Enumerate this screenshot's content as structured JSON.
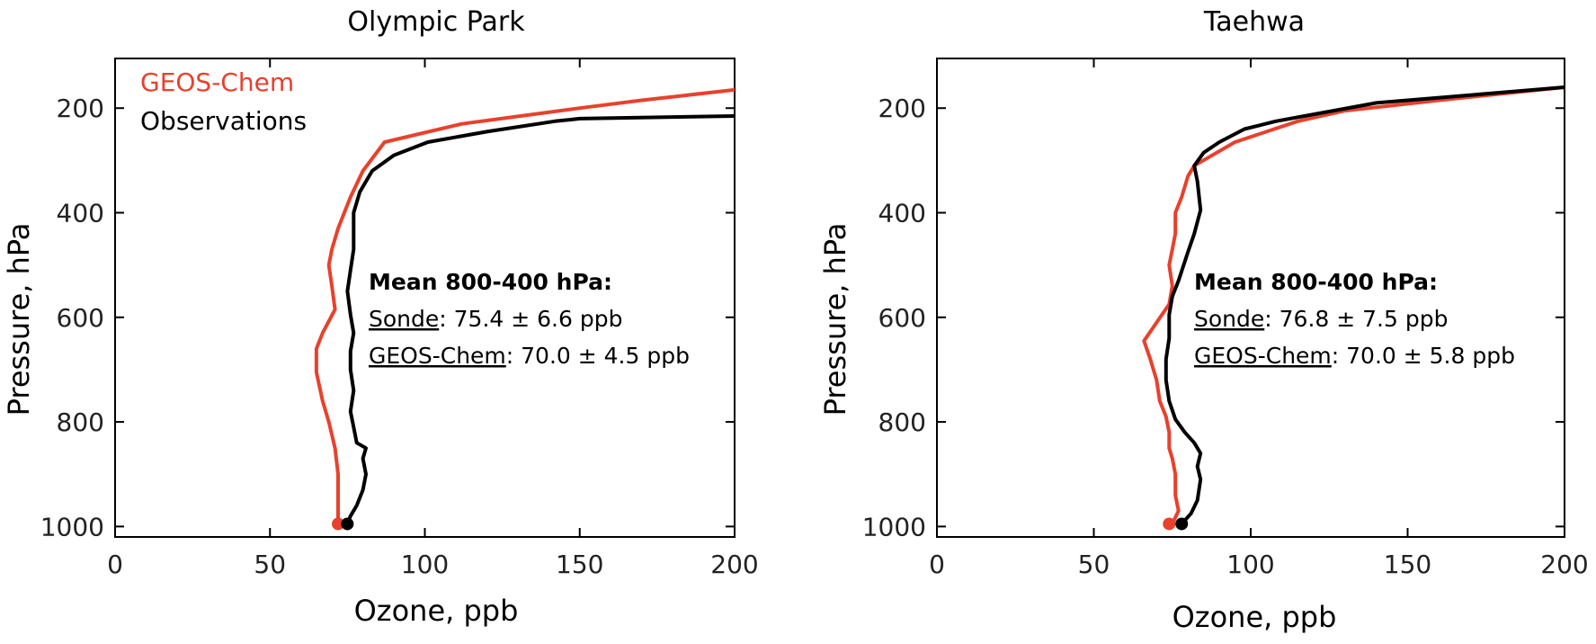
{
  "chart_data": [
    {
      "type": "line",
      "title": "Olympic Park",
      "xlabel": "Ozone, ppb",
      "ylabel": "Pressure, hPa",
      "xlim": [
        0,
        200
      ],
      "ylim": [
        1020,
        105
      ],
      "y_inverted": true,
      "xticks": [
        0,
        50,
        100,
        150,
        200
      ],
      "yticks": [
        200,
        400,
        600,
        800,
        1000
      ],
      "legend_position": "top-left",
      "series": [
        {
          "name": "GEOS-Chem",
          "color": "#e8412c",
          "points": [
            [
              200,
              165
            ],
            [
              170,
              185
            ],
            [
              150,
              200
            ],
            [
              112,
              230
            ],
            [
              87,
              265
            ],
            [
              80,
              320
            ],
            [
              76,
              370
            ],
            [
              72,
              430
            ],
            [
              70,
              470
            ],
            [
              69,
              500
            ],
            [
              70,
              540
            ],
            [
              71,
              585
            ],
            [
              67,
              630
            ],
            [
              65,
              660
            ],
            [
              65,
              705
            ],
            [
              67,
              760
            ],
            [
              69,
              800
            ],
            [
              71,
              850
            ],
            [
              72,
              900
            ],
            [
              72,
              960
            ],
            [
              72,
              995
            ]
          ],
          "surface_marker": [
            72,
            995
          ]
        },
        {
          "name": "Observations",
          "color": "#000000",
          "points": [
            [
              200,
              215
            ],
            [
              150,
              220
            ],
            [
              142,
              225
            ],
            [
              120,
              245
            ],
            [
              101,
              265
            ],
            [
              90,
              290
            ],
            [
              83,
              320
            ],
            [
              79,
              360
            ],
            [
              77,
              400
            ],
            [
              77,
              440
            ],
            [
              77,
              470
            ],
            [
              76,
              510
            ],
            [
              75,
              550
            ],
            [
              76,
              595
            ],
            [
              77,
              630
            ],
            [
              76,
              665
            ],
            [
              76,
              700
            ],
            [
              77,
              740
            ],
            [
              76,
              780
            ],
            [
              77,
              810
            ],
            [
              78,
              840
            ],
            [
              81,
              850
            ],
            [
              80,
              870
            ],
            [
              81,
              900
            ],
            [
              80,
              930
            ],
            [
              78,
              960
            ],
            [
              76,
              980
            ],
            [
              75,
              995
            ]
          ],
          "surface_marker": [
            75,
            995
          ]
        }
      ],
      "annotation": {
        "heading": "Mean 800-400 hPa:",
        "line1_label": "Sonde",
        "line1_value": ": 75.4 ± 6.6 ppb",
        "line2_label": "GEOS-Chem",
        "line2_value": ": 70.0 ± 4.5 ppb"
      }
    },
    {
      "type": "line",
      "title": "Taehwa",
      "xlabel": "Ozone, ppb",
      "ylabel": "Pressure, hPa",
      "xlim": [
        0,
        200
      ],
      "ylim": [
        1020,
        105
      ],
      "y_inverted": true,
      "xticks": [
        0,
        50,
        100,
        150,
        200
      ],
      "yticks": [
        200,
        400,
        600,
        800,
        1000
      ],
      "series": [
        {
          "name": "GEOS-Chem",
          "color": "#e8412c",
          "points": [
            [
              200,
              160
            ],
            [
              160,
              185
            ],
            [
              130,
              205
            ],
            [
              115,
              225
            ],
            [
              95,
              265
            ],
            [
              82,
              310
            ],
            [
              80,
              330
            ],
            [
              78,
              370
            ],
            [
              76,
              400
            ],
            [
              76,
              440
            ],
            [
              75,
              470
            ],
            [
              74,
              500
            ],
            [
              75,
              540
            ],
            [
              74,
              575
            ],
            [
              70,
              610
            ],
            [
              66,
              645
            ],
            [
              68,
              680
            ],
            [
              70,
              720
            ],
            [
              71,
              760
            ],
            [
              73,
              790
            ],
            [
              74,
              820
            ],
            [
              74,
              850
            ],
            [
              75,
              870
            ],
            [
              76,
              900
            ],
            [
              76,
              940
            ],
            [
              77,
              970
            ],
            [
              75,
              995
            ]
          ],
          "surface_marker": [
            74,
            995
          ]
        },
        {
          "name": "Observations",
          "color": "#000000",
          "points": [
            [
              200,
              160
            ],
            [
              170,
              175
            ],
            [
              140,
              190
            ],
            [
              108,
              225
            ],
            [
              98,
              240
            ],
            [
              90,
              265
            ],
            [
              85,
              285
            ],
            [
              82,
              310
            ],
            [
              83,
              340
            ],
            [
              84,
              395
            ],
            [
              82,
              440
            ],
            [
              80,
              475
            ],
            [
              77,
              530
            ],
            [
              75,
              560
            ],
            [
              74,
              595
            ],
            [
              74,
              640
            ],
            [
              73,
              680
            ],
            [
              73,
              720
            ],
            [
              74,
              760
            ],
            [
              76,
              795
            ],
            [
              79,
              820
            ],
            [
              82,
              840
            ],
            [
              84,
              860
            ],
            [
              83,
              885
            ],
            [
              84,
              910
            ],
            [
              83,
              950
            ],
            [
              81,
              975
            ],
            [
              78,
              995
            ]
          ],
          "surface_marker": [
            78,
            995
          ]
        }
      ],
      "annotation": {
        "heading": "Mean 800-400 hPa:",
        "line1_label": "Sonde",
        "line1_value": ": 76.8 ± 7.5 ppb",
        "line2_label": "GEOS-Chem",
        "line2_value": ": 70.0 ± 5.8 ppb"
      }
    }
  ]
}
